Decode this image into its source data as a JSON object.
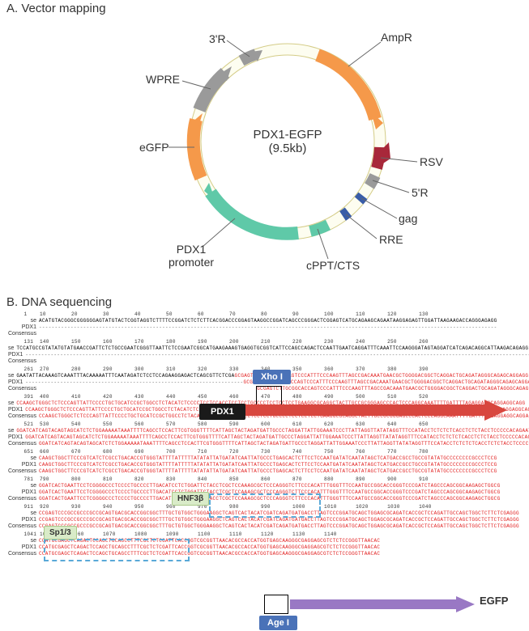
{
  "panelA": {
    "title": "A. Vector mapping"
  },
  "panelB": {
    "title": "B. DNA sequencing"
  },
  "vector": {
    "name": "PDX1-EGFP",
    "size": "(9.5kb)",
    "labels": {
      "ampr": "AmpR",
      "three_r": "3'R",
      "wpre": "WPRE",
      "egfp": "eGFP",
      "pdx1_prom": "PDX1\npromoter",
      "cppt": "cPPT/CTS",
      "rre": "RRE",
      "gag": "gag",
      "five_r": "5'R",
      "rsv": "RSV"
    },
    "colors": {
      "ring_fill": "#fdfdf0",
      "ring_stroke": "#d4cc88",
      "ampr": "#f5994a",
      "three_r": "#9a9a9a",
      "wpre": "#9a9a9a",
      "egfp": "#f5994a",
      "pdx1_prom": "#5fc9a8",
      "cppt": "#5fc9a8",
      "rre": "#3a5da8",
      "gag": "#3a5da8",
      "five_r": "#9a9a9a",
      "rsv": "#a8283a"
    }
  },
  "seq": {
    "labels": {
      "se": "se",
      "pdx1": "PDX1",
      "consensus": "Consensus"
    },
    "blocks": [
      {
        "start": 1,
        "end": 130,
        "mode": "se_black_dash",
        "se_text": "ACATGTACGGGCGGGGGGAGTATGTACTCGGTAGGTCTTTTCCGGATCTCTCTTCACGGACCCGGAGTAAGGCCGGATCAGCCCGGGACTCGGAGTCATGCAGAAGCAGAATAAGGAGAGTTGGATTAAGAAGACCAGGGAGAGG"
      },
      {
        "start": 131,
        "end": 260,
        "mode": "se_black_dash",
        "se_text": "TCCATGCCGTATATGTATGAACCGATTCTCTGCCGAATCGGGTTAATTCTCCGAATCGGCATGAAGAAAGTGAGGTGCGGTCATTCCAGCCAGACTCCAATTGAATCAGGATTTCAAATTCCAAGGGATAGTAGGATCATCAGACAGGCATTAAGACAGAGG"
      },
      {
        "start": 261,
        "end": 390,
        "mode": "split",
        "split_at": 65,
        "se_black": "GAATATTACAAAGTCAAATTTACAAAAATTTCAATAGATCTCCTCCAGAAGGAGACTCAGCGTTCTCGA",
        "se_red": "GCGAGTCTTGCGGCACCAGTCCCATTTCCCAAGTTTAGCCGACAAATGAACGCTGGGGACGGCTCAGGACTGCAGATAGGGCAGAGCAGGAGG"
      },
      {
        "start": 391,
        "end": 520,
        "mode": "red",
        "text": "CCAAGCTGGGCTCTCCCAGTTATTCCCCTGCTGCATCCGCTGGCCTCTACATCTCCCCTCCTCCACCTCCTCCTGCCCCTCCTCCTCCTGAAGGCGCAGGCTACTTGCCGCGGGAGCCCACTCCCAGGCAAATTTTGATTTTAGAGGAGGCAGGAGGCAGG"
      },
      {
        "start": 521,
        "end": 650,
        "mode": "red",
        "text": "GGATCATCAGTACAGTAGCATCTCTGGAAAAATAAATTTTCAGCCTCCACTTCGTGGGTTTTCATTAGCTACTAGATGATTGCCCTAGGATTATTGGAAATCCCTTATTAGGTTATATAGGTTTCCATACCTCTCTCTCACCTCTCTACCTCCCCCACAGAAT"
      },
      {
        "start": 651,
        "end": 780,
        "mode": "red",
        "text": "CAAGCTGGCTTCCCGTCATCTCGCCTGACACCGTGGGTATTTTATTTTTATATATTATGATATCAATTATGCCCTGAGCACTCTTCCTCCAATGATATCAATATAGCTCATGACCGCCTGCCGTATATGCCCCCCCCGCCCTCCG"
      },
      {
        "start": 781,
        "end": 910,
        "mode": "red",
        "text": "GGATCACTGAATTCCTCGGGGCCCTCCCCTGCCCCTTGACATCCTCTGGATTCTACCTCGCTCCAAAGCGCTCCCAGGGTCTTCCCACATTTGGGTTTCCAATGCCGGCACCGGGTCCCGATCTAGCCCAGCGGCAAGAGCTGGCG"
      },
      {
        "start": 911,
        "end": 1040,
        "mode": "red",
        "text": "CCGAGTCCCGCCGCCCGCCGCAGTGACGCACCGGCGGCTTTGCTGTGGCTGGGAAGGCTCAGTCACTACATCGATCAGATGATGACCTTAGTCCCGGATGCAGCTGGAGCGCAGATCACCGCTCCAGATTGCCAGCTGGCTCTTCTCGAGGG"
      },
      {
        "start": 1041,
        "end": 1148,
        "mode": "red",
        "text": "CCATGCGAGCTCAGACTCCAGCTGCAGCCTTTCGCTCTCGATTCACCGGTCGCGGTTAACACGCCACCATGGTGAGCAAGGGCGAGGAGCGTCTCTCCGGGTTAACAC"
      }
    ]
  },
  "annotations": {
    "xho": "Xho I",
    "pdx1": "PDX1",
    "hnf": "HNF3β",
    "sp": "Sp1/3",
    "age": "Age I",
    "egfp": "EGFP"
  },
  "colors": {
    "seq_red": "#e22222",
    "seq_black": "#000000",
    "dash_blue": "#5aa9d8",
    "pdx_arrow": "#d8473f",
    "egfp_arrow": "#9978c4"
  }
}
